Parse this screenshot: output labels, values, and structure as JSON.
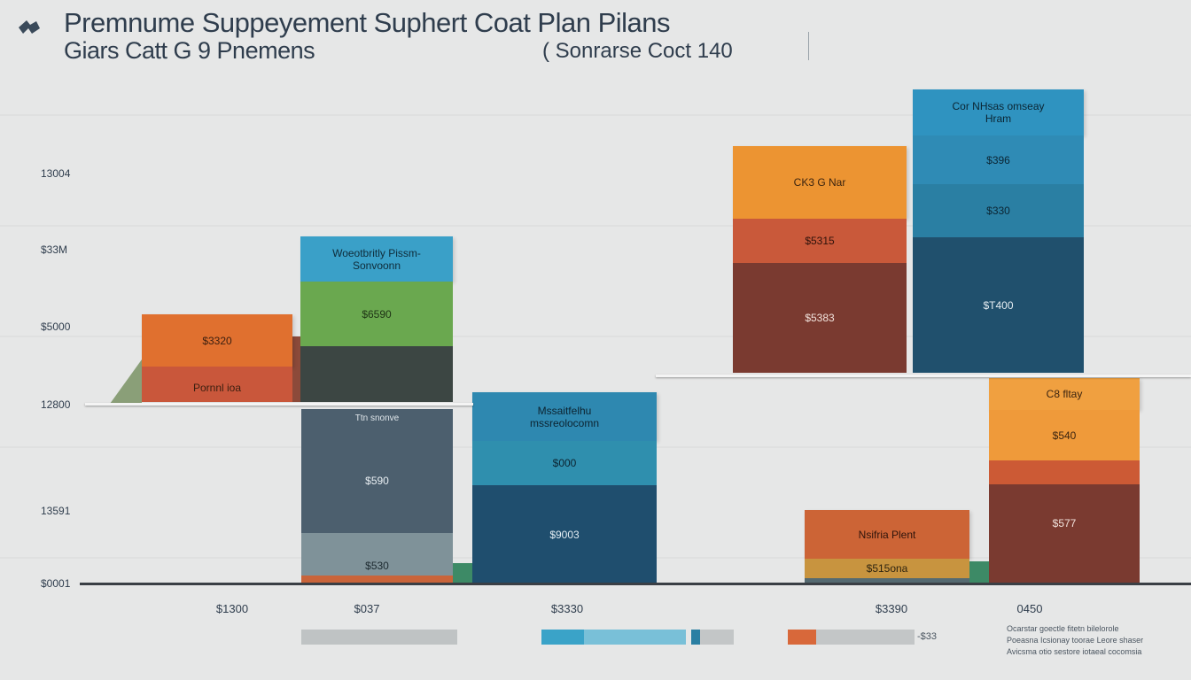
{
  "header": {
    "title": "Premnume Suppeyement Suphert Coat Plan Pilans",
    "subtitle": "Giars Catt G 9 Pnemens",
    "subtitle_right": "( Sonrarse Coct 140"
  },
  "chart_data": {
    "type": "bar",
    "stacked": true,
    "yticks": [
      "13004",
      "$33M",
      "$5000",
      "12800",
      "13591",
      "$0001"
    ],
    "xlabels": [
      "$1300",
      "$037",
      "$3330",
      "$3390",
      "0450"
    ],
    "legend": [
      "Ocarstar goectle fitetn bilelorole",
      "Poeasna Icsionay toorae Leore shaser",
      "Avicsma otio sestore iotaeal cocomsia"
    ],
    "legend_value": "-$33",
    "bars": [
      {
        "name": "A",
        "segments": [
          {
            "label": "$3320",
            "color": "#e0702f"
          },
          {
            "label": "Pornnl ioa",
            "color": "#c9573b"
          }
        ]
      },
      {
        "name": "B-upper",
        "segments": [
          {
            "label": "Woeotbritly Pissm-Sonvoonn",
            "color": "#3aa0c8"
          },
          {
            "label": "$6590",
            "color": "#6aa84f"
          },
          {
            "label": "",
            "color": "#3c4643"
          }
        ]
      },
      {
        "name": "B-lower",
        "segments": [
          {
            "label": "Ttn snonve",
            "color": "#4c5f6e"
          },
          {
            "label": "$590",
            "color": "#4c5f6e"
          },
          {
            "label": "$530",
            "color": "#7f9299"
          },
          {
            "label": "",
            "color": "#c9643a"
          }
        ]
      },
      {
        "name": "C",
        "segments": [
          {
            "label": "Mssaitfelhu mssreolocomn",
            "color": "#2e88b0"
          },
          {
            "label": "$000",
            "color": "#2f8fae"
          },
          {
            "label": "$9003",
            "color": "#1f4e6e"
          }
        ]
      },
      {
        "name": "D",
        "segments": [
          {
            "label": "CK3 G Nar",
            "color": "#ec9432"
          },
          {
            "label": "$5315",
            "color": "#c9593a"
          },
          {
            "label": "$5383",
            "color": "#7a3a30"
          }
        ]
      },
      {
        "name": "E",
        "segments": [
          {
            "label": "Cor NHsas omseay Hram",
            "color": "#2f93c0"
          },
          {
            "label": "$396",
            "color": "#2f8bb5"
          },
          {
            "label": "$330",
            "color": "#2a7fa3"
          },
          {
            "label": "$T400",
            "color": "#20506d"
          }
        ]
      },
      {
        "name": "F",
        "segments": [
          {
            "label": "Nsifria Plent",
            "color": "#cc6436"
          },
          {
            "label": "$515ona",
            "color": "#c8943f"
          },
          {
            "label": "",
            "color": "#556a71"
          }
        ]
      },
      {
        "name": "G",
        "segments": [
          {
            "label": "C8 fltay",
            "color": "#f0a040"
          },
          {
            "label": "$540",
            "color": "#ef9a3a"
          },
          {
            "label": "",
            "color": "#cc5a35"
          },
          {
            "label": "$577",
            "color": "#7a3a30"
          }
        ]
      }
    ]
  }
}
